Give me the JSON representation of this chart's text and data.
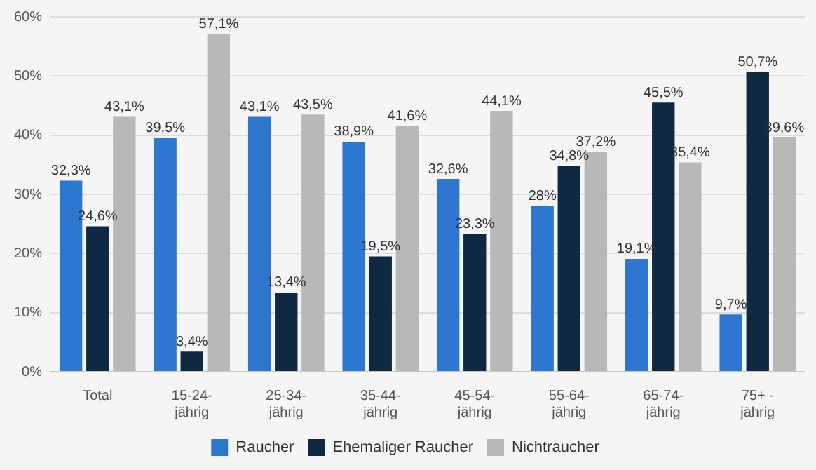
{
  "chart_data": {
    "type": "bar",
    "categories": [
      "Total",
      "15-24-jährig",
      "25-34-jährig",
      "35-44-jährig",
      "45-54-jährig",
      "55-64-jährig",
      "65-74-jährig",
      "75+ -jährig"
    ],
    "series": [
      {
        "name": "Raucher",
        "color": "#2e77d0",
        "values": [
          32.3,
          39.5,
          43.1,
          38.9,
          32.6,
          28,
          19.1,
          9.7
        ],
        "value_labels": [
          "32,3%",
          "39,5%",
          "43,1%",
          "38,9%",
          "32,6%",
          "28%",
          "19,1%",
          "9,7%"
        ]
      },
      {
        "name": "Ehemaliger Raucher",
        "color": "#0f2942",
        "values": [
          24.6,
          3.4,
          13.4,
          19.5,
          23.3,
          34.8,
          45.5,
          50.7
        ],
        "value_labels": [
          "24,6%",
          "3,4%",
          "13,4%",
          "19,5%",
          "23,3%",
          "34,8%",
          "45,5%",
          "50,7%"
        ]
      },
      {
        "name": "Nichtraucher",
        "color": "#b8b8b8",
        "values": [
          43.1,
          57.1,
          43.5,
          41.6,
          44.1,
          37.2,
          35.4,
          39.6
        ],
        "value_labels": [
          "43,1%",
          "57,1%",
          "43,5%",
          "41,6%",
          "44,1%",
          "37,2%",
          "35,4%",
          "39,6%"
        ]
      }
    ],
    "ylim": [
      0,
      60
    ],
    "yticks": [
      {
        "value": 0,
        "label": "0%"
      },
      {
        "value": 10,
        "label": "10%"
      },
      {
        "value": 20,
        "label": "20%"
      },
      {
        "value": 30,
        "label": "30%"
      },
      {
        "value": 40,
        "label": "40%"
      },
      {
        "value": 50,
        "label": "50%"
      },
      {
        "value": 60,
        "label": "60%"
      }
    ],
    "grid": "y",
    "legend": "bottom"
  }
}
